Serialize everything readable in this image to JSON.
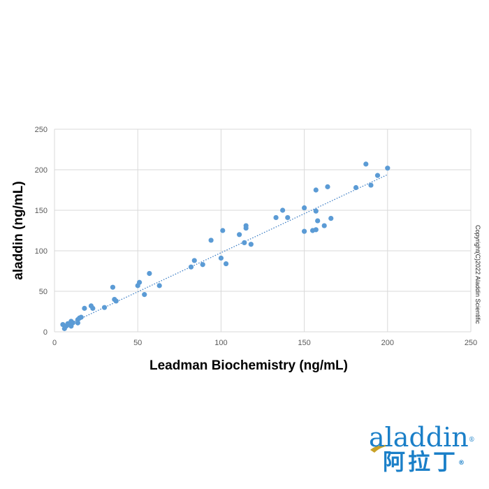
{
  "chart_data": {
    "type": "scatter",
    "xlabel": "Leadman Biochemistry (ng/mL)",
    "ylabel": "aladdin (ng/mL)",
    "xlim": [
      0,
      250
    ],
    "ylim": [
      0,
      250
    ],
    "x_ticks": [
      0,
      50,
      100,
      150,
      200,
      250
    ],
    "y_ticks": [
      0,
      50,
      100,
      150,
      200,
      250
    ],
    "grid": true,
    "trendline": {
      "style": "dotted",
      "x": [
        5,
        200
      ],
      "y": [
        6,
        194
      ]
    },
    "series": [
      {
        "color": "#5b9bd5",
        "points": [
          [
            5,
            9
          ],
          [
            6,
            4
          ],
          [
            7,
            7
          ],
          [
            8,
            10
          ],
          [
            9,
            9
          ],
          [
            10,
            7
          ],
          [
            10,
            13
          ],
          [
            11,
            11
          ],
          [
            14,
            11
          ],
          [
            14,
            15
          ],
          [
            15,
            17
          ],
          [
            16,
            18
          ],
          [
            18,
            29
          ],
          [
            22,
            32
          ],
          [
            23,
            29
          ],
          [
            30,
            30
          ],
          [
            35,
            55
          ],
          [
            36,
            40
          ],
          [
            37,
            38
          ],
          [
            50,
            57
          ],
          [
            51,
            61
          ],
          [
            54,
            46
          ],
          [
            57,
            72
          ],
          [
            63,
            57
          ],
          [
            82,
            80
          ],
          [
            84,
            88
          ],
          [
            89,
            83
          ],
          [
            94,
            113
          ],
          [
            100,
            91
          ],
          [
            101,
            125
          ],
          [
            103,
            84
          ],
          [
            111,
            120
          ],
          [
            114,
            110
          ],
          [
            115,
            131
          ],
          [
            115,
            128
          ],
          [
            118,
            108
          ],
          [
            133,
            141
          ],
          [
            137,
            150
          ],
          [
            140,
            141
          ],
          [
            150,
            153
          ],
          [
            150,
            124
          ],
          [
            155,
            125
          ],
          [
            157,
            126
          ],
          [
            157,
            149
          ],
          [
            157,
            175
          ],
          [
            158,
            137
          ],
          [
            162,
            131
          ],
          [
            164,
            179
          ],
          [
            166,
            140
          ],
          [
            181,
            178
          ],
          [
            187,
            207
          ],
          [
            190,
            181
          ],
          [
            194,
            193
          ],
          [
            200,
            202
          ]
        ]
      }
    ]
  },
  "copyright": "Copyright(C)2022 Aladdin Scientific",
  "logo": {
    "latin": "aladdin",
    "cjk": "阿拉丁",
    "reg_mark": "®",
    "color": "#1a7fc8",
    "swoosh_color": "#c9a227"
  }
}
